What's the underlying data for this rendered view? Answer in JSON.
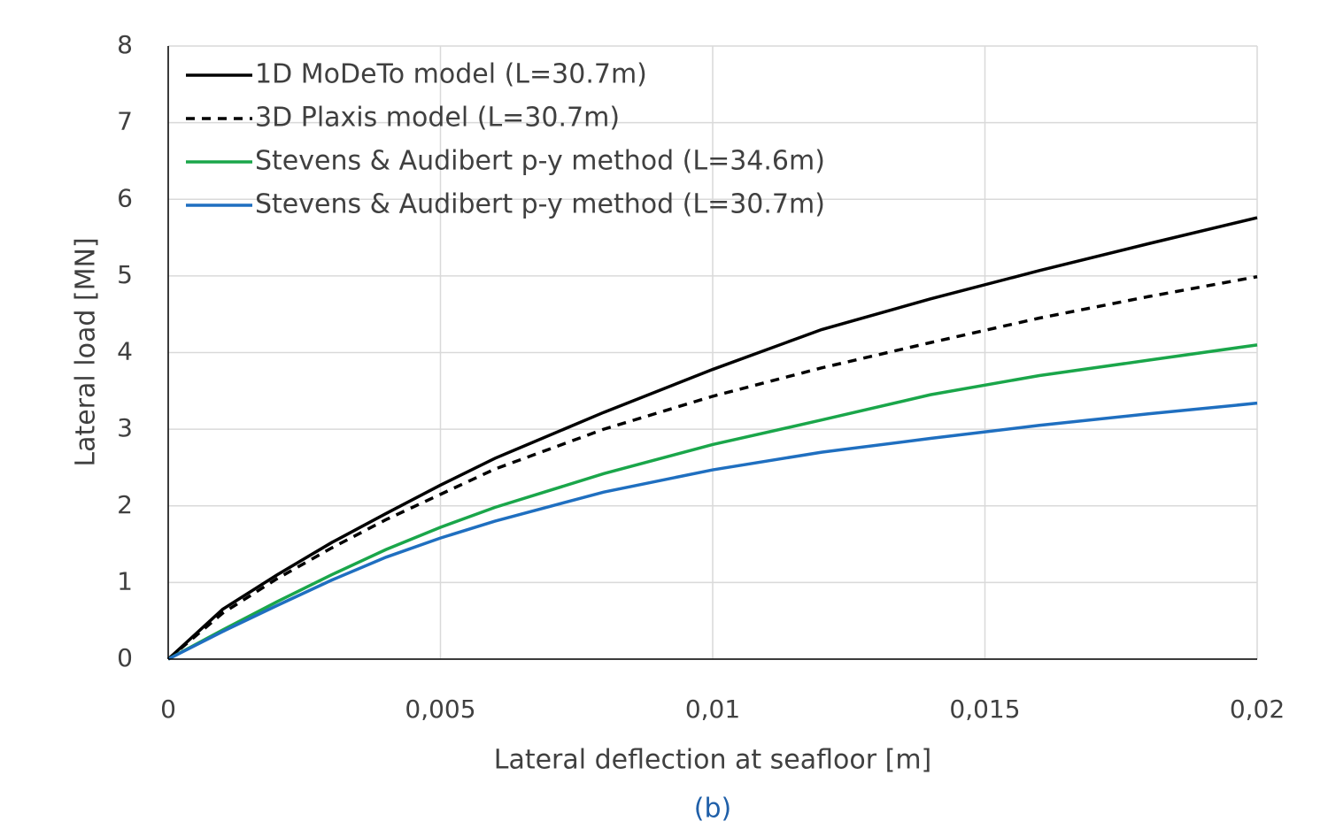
{
  "chart_data": {
    "type": "line",
    "x_label": "Lateral deflection at seafloor [m]",
    "y_label": "Lateral load [MN]",
    "caption": "(b)",
    "x": [
      0,
      0.001,
      0.002,
      0.003,
      0.004,
      0.005,
      0.006,
      0.008,
      0.01,
      0.012,
      0.014,
      0.016,
      0.018,
      0.02
    ],
    "series": [
      {
        "name": "1D MoDeTo model (L=30.7m)",
        "color": "#000000",
        "dashed": false,
        "values": [
          0,
          0.65,
          1.1,
          1.52,
          1.9,
          2.27,
          2.62,
          3.22,
          3.78,
          4.3,
          4.7,
          5.07,
          5.42,
          5.76
        ]
      },
      {
        "name": "3D Plaxis model (L=30.7m)",
        "color": "#000000",
        "dashed": true,
        "values": [
          0,
          0.6,
          1.05,
          1.45,
          1.82,
          2.15,
          2.48,
          3.0,
          3.43,
          3.8,
          4.13,
          4.45,
          4.73,
          4.99
        ]
      },
      {
        "name": "Stevens & Audibert p-y method (L=34.6m)",
        "color": "#1aa64a",
        "dashed": false,
        "values": [
          0,
          0.38,
          0.75,
          1.1,
          1.43,
          1.72,
          1.98,
          2.42,
          2.8,
          3.12,
          3.45,
          3.7,
          3.9,
          4.1
        ]
      },
      {
        "name": "Stevens & Audibert p-y method (L=30.7m)",
        "color": "#1f6fc0",
        "dashed": false,
        "values": [
          0,
          0.36,
          0.7,
          1.03,
          1.33,
          1.58,
          1.8,
          2.18,
          2.47,
          2.7,
          2.88,
          3.05,
          3.2,
          3.34
        ]
      }
    ],
    "xlim": [
      0,
      0.02
    ],
    "xticks": [
      0,
      {
        "value": 0.005,
        "label": "0,005"
      },
      {
        "value": 0.01,
        "label": "0,01"
      },
      {
        "value": 0.015,
        "label": "0,015"
      },
      {
        "value": 0.02,
        "label": "0,02"
      }
    ],
    "ylim": [
      0,
      8
    ],
    "yticks": [
      0,
      1,
      2,
      3,
      4,
      5,
      6,
      7,
      8
    ],
    "grid": true,
    "legend": "upper-left"
  }
}
